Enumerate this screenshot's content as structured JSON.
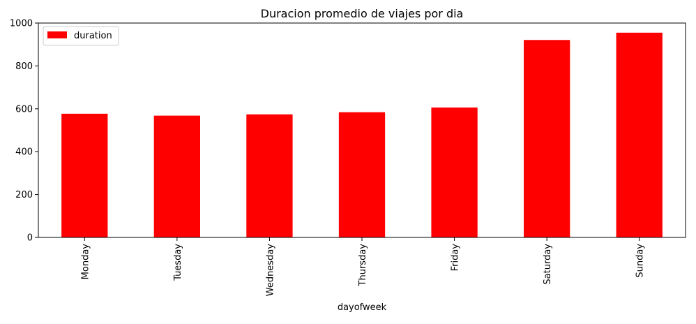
{
  "chart_data": {
    "type": "bar",
    "title": "Duracion promedio de viajes por dia",
    "xlabel": "dayofweek",
    "ylabel": "",
    "categories": [
      "Monday",
      "Tuesday",
      "Wednesday",
      "Thursday",
      "Friday",
      "Saturday",
      "Sunday"
    ],
    "series": [
      {
        "name": "duration",
        "color": "#ff0000",
        "values": [
          577,
          568,
          574,
          584,
          606,
          921,
          955
        ]
      }
    ],
    "ylim": [
      0,
      1000
    ],
    "yticks": [
      0,
      200,
      400,
      600,
      800,
      1000
    ],
    "grid": false,
    "legend_position": "top-left"
  }
}
